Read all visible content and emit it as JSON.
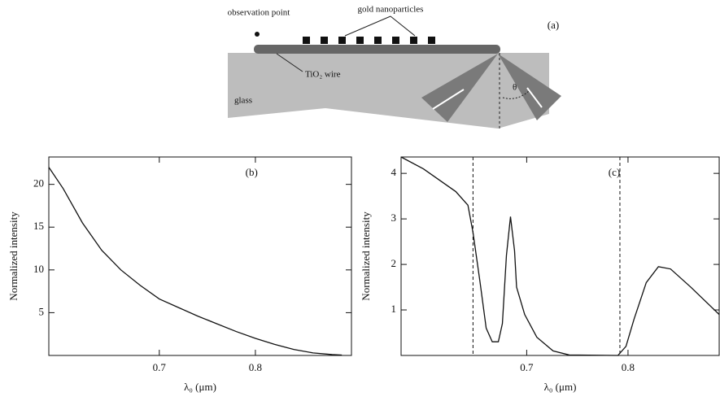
{
  "diagram": {
    "panel": "(a)",
    "observation": "observation point",
    "particles": "gold nanoparticles",
    "wire": "TiO₂ wire",
    "glass": "glass",
    "angle": "θ"
  },
  "chart_data": [
    {
      "type": "line",
      "title": "(b)",
      "xlabel": "λ₀ (μm)",
      "ylabel": "Normalized intensity",
      "x": [
        0.585,
        0.6,
        0.62,
        0.64,
        0.66,
        0.68,
        0.7,
        0.72,
        0.74,
        0.76,
        0.78,
        0.8,
        0.82,
        0.84,
        0.86,
        0.88,
        0.89
      ],
      "series": [
        {
          "name": "intensity",
          "color": "#111111",
          "values": [
            22,
            19.5,
            15.5,
            12.3,
            10,
            8.2,
            6.6,
            5.6,
            4.6,
            3.7,
            2.8,
            2,
            1.3,
            0.7,
            0.3,
            0.1,
            0.05
          ]
        }
      ],
      "xlim": [
        0.585,
        0.9
      ],
      "ylim": [
        0,
        23.2
      ],
      "xticks": [
        0.7,
        0.8
      ],
      "yticks": [
        5,
        10,
        15,
        20
      ]
    },
    {
      "type": "line",
      "title": "(c)",
      "xlabel": "λ₀ (μm)",
      "ylabel": "Normalized intensity",
      "x": [
        0.576,
        0.598,
        0.63,
        0.642,
        0.647,
        0.654,
        0.66,
        0.666,
        0.672,
        0.676,
        0.68,
        0.684,
        0.688,
        0.69,
        0.698,
        0.71,
        0.726,
        0.742,
        0.79,
        0.798,
        0.806,
        0.818,
        0.83,
        0.842,
        0.862,
        0.89
      ],
      "series": [
        {
          "name": "intensity",
          "color": "#111111",
          "values": [
            4.36,
            4.1,
            3.6,
            3.3,
            2.7,
            1.6,
            0.6,
            0.3,
            0.3,
            0.7,
            2.2,
            3.05,
            2.3,
            1.5,
            0.9,
            0.4,
            0.1,
            0.01,
            0,
            0.2,
            0.8,
            1.6,
            1.95,
            1.9,
            1.5,
            0.9
          ]
        }
      ],
      "vlines": [
        0.647,
        0.792
      ],
      "xlim": [
        0.576,
        0.89
      ],
      "ylim": [
        0,
        4.36
      ],
      "xticks": [
        0.7,
        0.8
      ],
      "yticks": [
        1,
        2,
        3,
        4
      ]
    }
  ]
}
